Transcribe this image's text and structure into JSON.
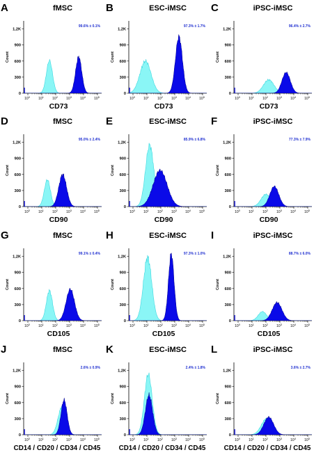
{
  "chart_data": {
    "type": "histogram-grid",
    "ylabel": "Count",
    "yticks": [
      "0",
      "300",
      "600",
      "900",
      "1,2K"
    ],
    "ylim": [
      0,
      1350
    ],
    "x_log_ticks": [
      {
        "base": "10",
        "exp": "0"
      },
      {
        "base": "10",
        "exp": "1"
      },
      {
        "base": "10",
        "exp": "2"
      },
      {
        "base": "10",
        "exp": "3"
      },
      {
        "base": "10",
        "exp": "4"
      },
      {
        "base": "10",
        "exp": "5"
      }
    ],
    "colors": {
      "control": "#8af6f6",
      "control_edge": "#40d8df",
      "marker": "#0a0ae8",
      "marker_edge": "#00008a",
      "stat_text": "#1f2fd0"
    },
    "panels": [
      {
        "letter": "A",
        "title": "fMSC",
        "xlabel": "CD73",
        "stat": "99.6% ± 0.1%",
        "control": {
          "center": 1.55,
          "sigma": 0.22,
          "height": 610
        },
        "marker": {
          "center": 3.65,
          "sigma": 0.22,
          "height": 680
        }
      },
      {
        "letter": "B",
        "title": "ESC-iMSC",
        "xlabel": "CD73",
        "stat": "97.3% ± 1.7%",
        "control": {
          "center": 0.9,
          "sigma": 0.4,
          "height": 600
        },
        "marker": {
          "center": 3.3,
          "sigma": 0.25,
          "height": 1060
        }
      },
      {
        "letter": "C",
        "title": "iPSC-iMSC",
        "xlabel": "CD73",
        "stat": "96.4% ± 2.7%",
        "control": {
          "center": 2.2,
          "sigma": 0.38,
          "height": 250
        },
        "marker": {
          "center": 3.45,
          "sigma": 0.3,
          "height": 390
        }
      },
      {
        "letter": "D",
        "title": "fMSC",
        "xlabel": "CD90",
        "stat": "95.0% ± 2.4%",
        "control": {
          "center": 1.4,
          "sigma": 0.22,
          "height": 500
        },
        "marker": {
          "center": 2.5,
          "sigma": 0.28,
          "height": 600
        }
      },
      {
        "letter": "E",
        "title": "ESC-iMSC",
        "xlabel": "CD90",
        "stat": "85.9% ± 6.8%",
        "control": {
          "center": 1.2,
          "sigma": 0.3,
          "height": 1150
        },
        "marker": {
          "center": 1.95,
          "sigma": 0.5,
          "height": 680
        }
      },
      {
        "letter": "F",
        "title": "iPSC-iMSC",
        "xlabel": "CD90",
        "stat": "77.3% ± 7.9%",
        "control": {
          "center": 2.0,
          "sigma": 0.35,
          "height": 230
        },
        "marker": {
          "center": 2.6,
          "sigma": 0.32,
          "height": 380
        }
      },
      {
        "letter": "G",
        "title": "fMSC",
        "xlabel": "CD105",
        "stat": "99.1% ± 0.4%",
        "control": {
          "center": 1.55,
          "sigma": 0.22,
          "height": 560
        },
        "marker": {
          "center": 3.05,
          "sigma": 0.3,
          "height": 590
        }
      },
      {
        "letter": "H",
        "title": "ESC-iMSC",
        "xlabel": "CD105",
        "stat": "97.3% ± 1.0%",
        "control": {
          "center": 1.05,
          "sigma": 0.3,
          "height": 1180
        },
        "marker": {
          "center": 2.75,
          "sigma": 0.2,
          "height": 1250
        }
      },
      {
        "letter": "I",
        "title": "iPSC-iMSC",
        "xlabel": "CD105",
        "stat": "88.7% ± 6.0%",
        "control": {
          "center": 1.75,
          "sigma": 0.3,
          "height": 170
        },
        "marker": {
          "center": 2.8,
          "sigma": 0.35,
          "height": 340
        }
      },
      {
        "letter": "J",
        "title": "fMSC",
        "xlabel": "CD14 / CD20 / CD34 / CD45",
        "stat": "2.6% ± 0.9%",
        "control": {
          "center": 2.45,
          "sigma": 0.28,
          "height": 520
        },
        "marker": {
          "center": 2.6,
          "sigma": 0.22,
          "height": 650
        }
      },
      {
        "letter": "K",
        "title": "ESC-iMSC",
        "xlabel": "CD14 / CD20 / CD34 / CD45",
        "stat": "2.4% ± 1.8%",
        "control": {
          "center": 1.1,
          "sigma": 0.28,
          "height": 1130
        },
        "marker": {
          "center": 1.15,
          "sigma": 0.26,
          "height": 740
        }
      },
      {
        "letter": "L",
        "title": "iPSC-iMSC",
        "xlabel": "CD14 / CD20 / CD34 / CD45",
        "stat": "3.6% ± 2.7%",
        "control": {
          "center": 2.05,
          "sigma": 0.38,
          "height": 300
        },
        "marker": {
          "center": 2.2,
          "sigma": 0.35,
          "height": 330
        }
      }
    ]
  }
}
